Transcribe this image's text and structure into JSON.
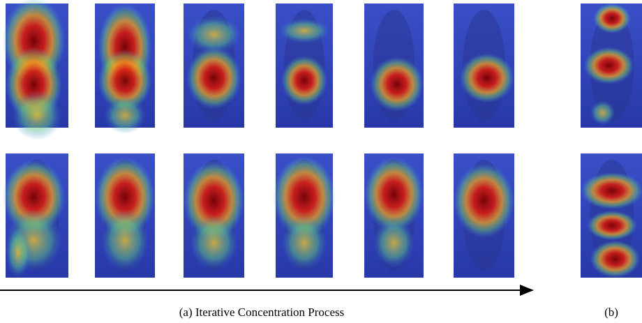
{
  "caption_a": "(a) Iterative Concentration Process",
  "caption_b": "(b)"
}
